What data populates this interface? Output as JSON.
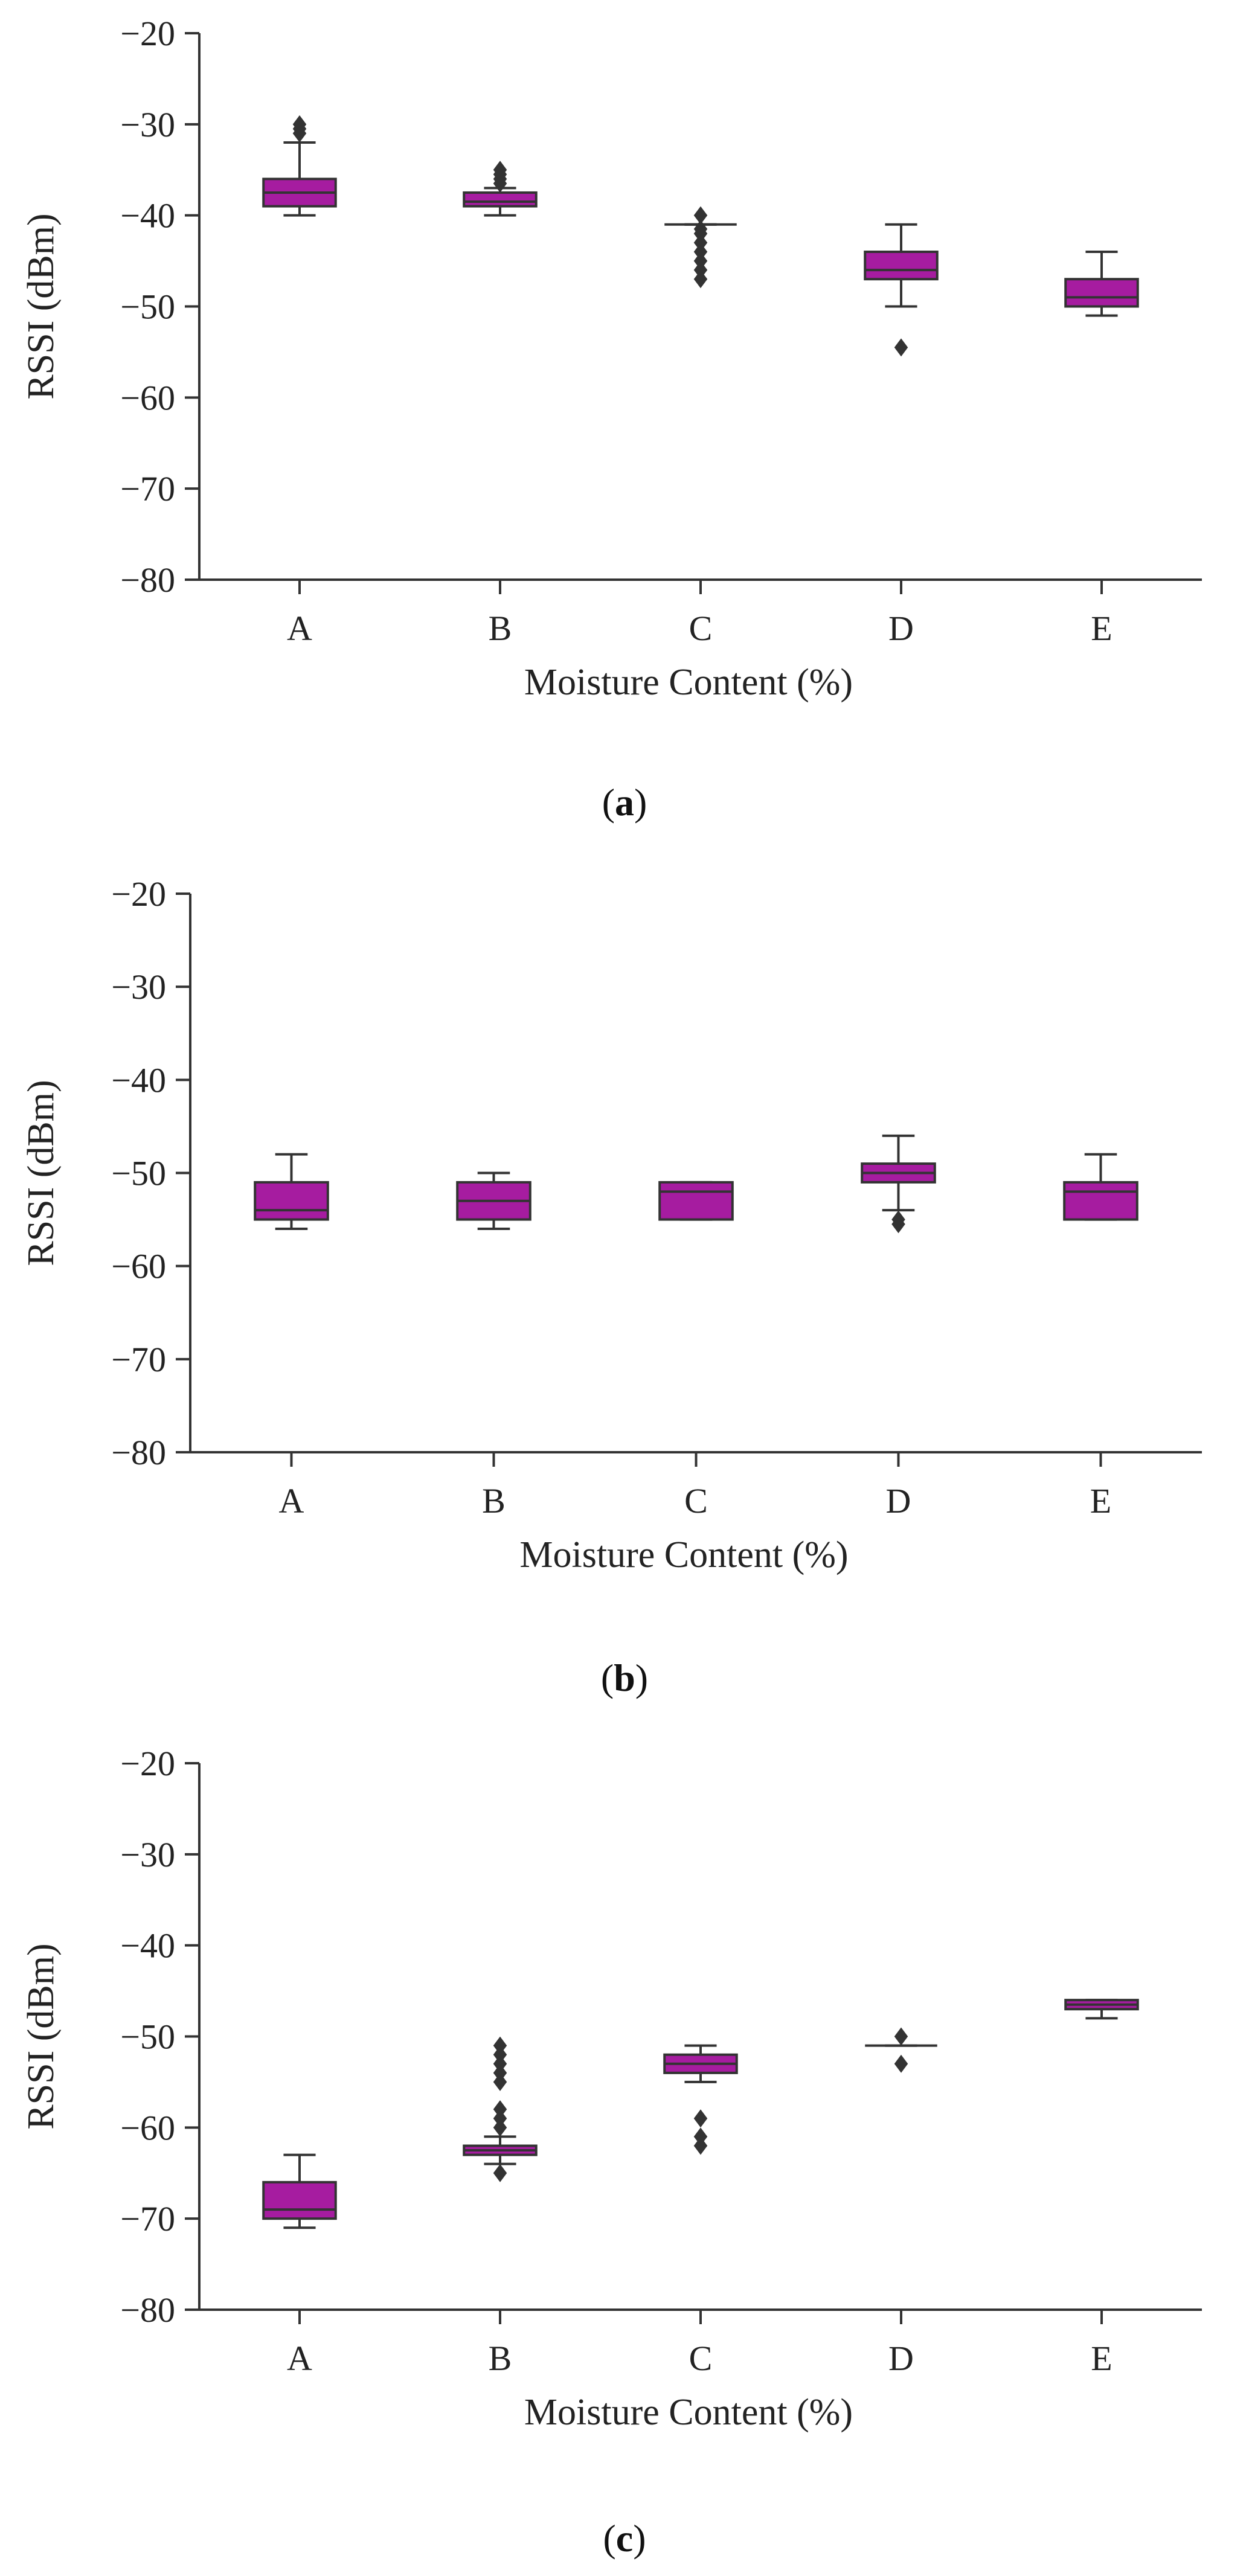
{
  "colors": {
    "box_fill": "#a61ca0",
    "line": "#333333",
    "background": "#ffffff"
  },
  "chart_data": [
    {
      "type": "box",
      "panel": "a",
      "caption": {
        "open": "(",
        "letter": "a",
        "close": ")"
      },
      "xlabel": "Moisture Content (%)",
      "ylabel": "RSSI (dBm)",
      "ylim": [
        -80,
        -20
      ],
      "yticks": [
        "−20",
        "−30",
        "−40",
        "−50",
        "−60",
        "−70",
        "−80"
      ],
      "ytick_values": [
        -20,
        -30,
        -40,
        -50,
        -60,
        -70,
        -80
      ],
      "categories": [
        "A",
        "B",
        "C",
        "D",
        "E"
      ],
      "grid": false,
      "boxes": [
        {
          "category": "A",
          "whisker_low": -40,
          "q1": -39,
          "median": -37.5,
          "q3": -36,
          "whisker_high": -32,
          "outliers": [
            -30,
            -30.5,
            -31
          ]
        },
        {
          "category": "B",
          "whisker_low": -40,
          "q1": -39,
          "median": -38.5,
          "q3": -37.5,
          "whisker_high": -37,
          "outliers": [
            -35,
            -35.5,
            -36,
            -36.5
          ]
        },
        {
          "category": "C",
          "whisker_low": -41,
          "q1": -41,
          "median": -41,
          "q3": -41,
          "whisker_high": -41,
          "outliers": [
            -40,
            -41.5,
            -42,
            -43,
            -44,
            -45,
            -46,
            -47
          ]
        },
        {
          "category": "D",
          "whisker_low": -50,
          "q1": -47,
          "median": -46,
          "q3": -44,
          "whisker_high": -41,
          "outliers": [
            -54.5
          ]
        },
        {
          "category": "E",
          "whisker_low": -51,
          "q1": -50,
          "median": -49,
          "q3": -47,
          "whisker_high": -44,
          "outliers": []
        }
      ]
    },
    {
      "type": "box",
      "panel": "b",
      "caption": {
        "open": "(",
        "letter": "b",
        "close": ")"
      },
      "xlabel": "Moisture Content (%)",
      "ylabel": "RSSI (dBm)",
      "ylim": [
        -80,
        -20
      ],
      "yticks": [
        "−20",
        "−30",
        "−40",
        "−50",
        "−60",
        "−70",
        "−80"
      ],
      "ytick_values": [
        -20,
        -30,
        -40,
        -50,
        -60,
        -70,
        -80
      ],
      "categories": [
        "A",
        "B",
        "C",
        "D",
        "E"
      ],
      "grid": false,
      "boxes": [
        {
          "category": "A",
          "whisker_low": -56,
          "q1": -55,
          "median": -54,
          "q3": -51,
          "whisker_high": -48,
          "outliers": []
        },
        {
          "category": "B",
          "whisker_low": -56,
          "q1": -55,
          "median": -53,
          "q3": -51,
          "whisker_high": -50,
          "outliers": []
        },
        {
          "category": "C",
          "whisker_low": -55,
          "q1": -55,
          "median": -52,
          "q3": -51,
          "whisker_high": -51,
          "outliers": []
        },
        {
          "category": "D",
          "whisker_low": -54,
          "q1": -51,
          "median": -50,
          "q3": -49,
          "whisker_high": -46,
          "outliers": [
            -55,
            -55.5
          ]
        },
        {
          "category": "E",
          "whisker_low": -55,
          "q1": -55,
          "median": -52,
          "q3": -51,
          "whisker_high": -48,
          "outliers": []
        }
      ]
    },
    {
      "type": "box",
      "panel": "c",
      "caption": {
        "open": "(",
        "letter": "c",
        "close": ")"
      },
      "xlabel": "Moisture Content (%)",
      "ylabel": "RSSI (dBm)",
      "ylim": [
        -80,
        -20
      ],
      "yticks": [
        "−20",
        "−30",
        "−40",
        "−50",
        "−60",
        "−70",
        "−80"
      ],
      "ytick_values": [
        -20,
        -30,
        -40,
        -50,
        -60,
        -70,
        -80
      ],
      "categories": [
        "A",
        "B",
        "C",
        "D",
        "E"
      ],
      "grid": false,
      "boxes": [
        {
          "category": "A",
          "whisker_low": -71,
          "q1": -70,
          "median": -69,
          "q3": -66,
          "whisker_high": -63,
          "outliers": []
        },
        {
          "category": "B",
          "whisker_low": -64,
          "q1": -63,
          "median": -62.5,
          "q3": -62,
          "whisker_high": -61,
          "outliers": [
            -51,
            -52,
            -53,
            -54,
            -55,
            -58,
            -59,
            -60,
            -65
          ]
        },
        {
          "category": "C",
          "whisker_low": -55,
          "q1": -54,
          "median": -53,
          "q3": -52,
          "whisker_high": -51,
          "outliers": [
            -59,
            -61,
            -62
          ]
        },
        {
          "category": "D",
          "whisker_low": -51,
          "q1": -51,
          "median": -51,
          "q3": -51,
          "whisker_high": -51,
          "outliers": [
            -50,
            -53
          ]
        },
        {
          "category": "E",
          "whisker_low": -48,
          "q1": -47,
          "median": -46.5,
          "q3": -46,
          "whisker_high": -46,
          "outliers": []
        }
      ]
    }
  ]
}
